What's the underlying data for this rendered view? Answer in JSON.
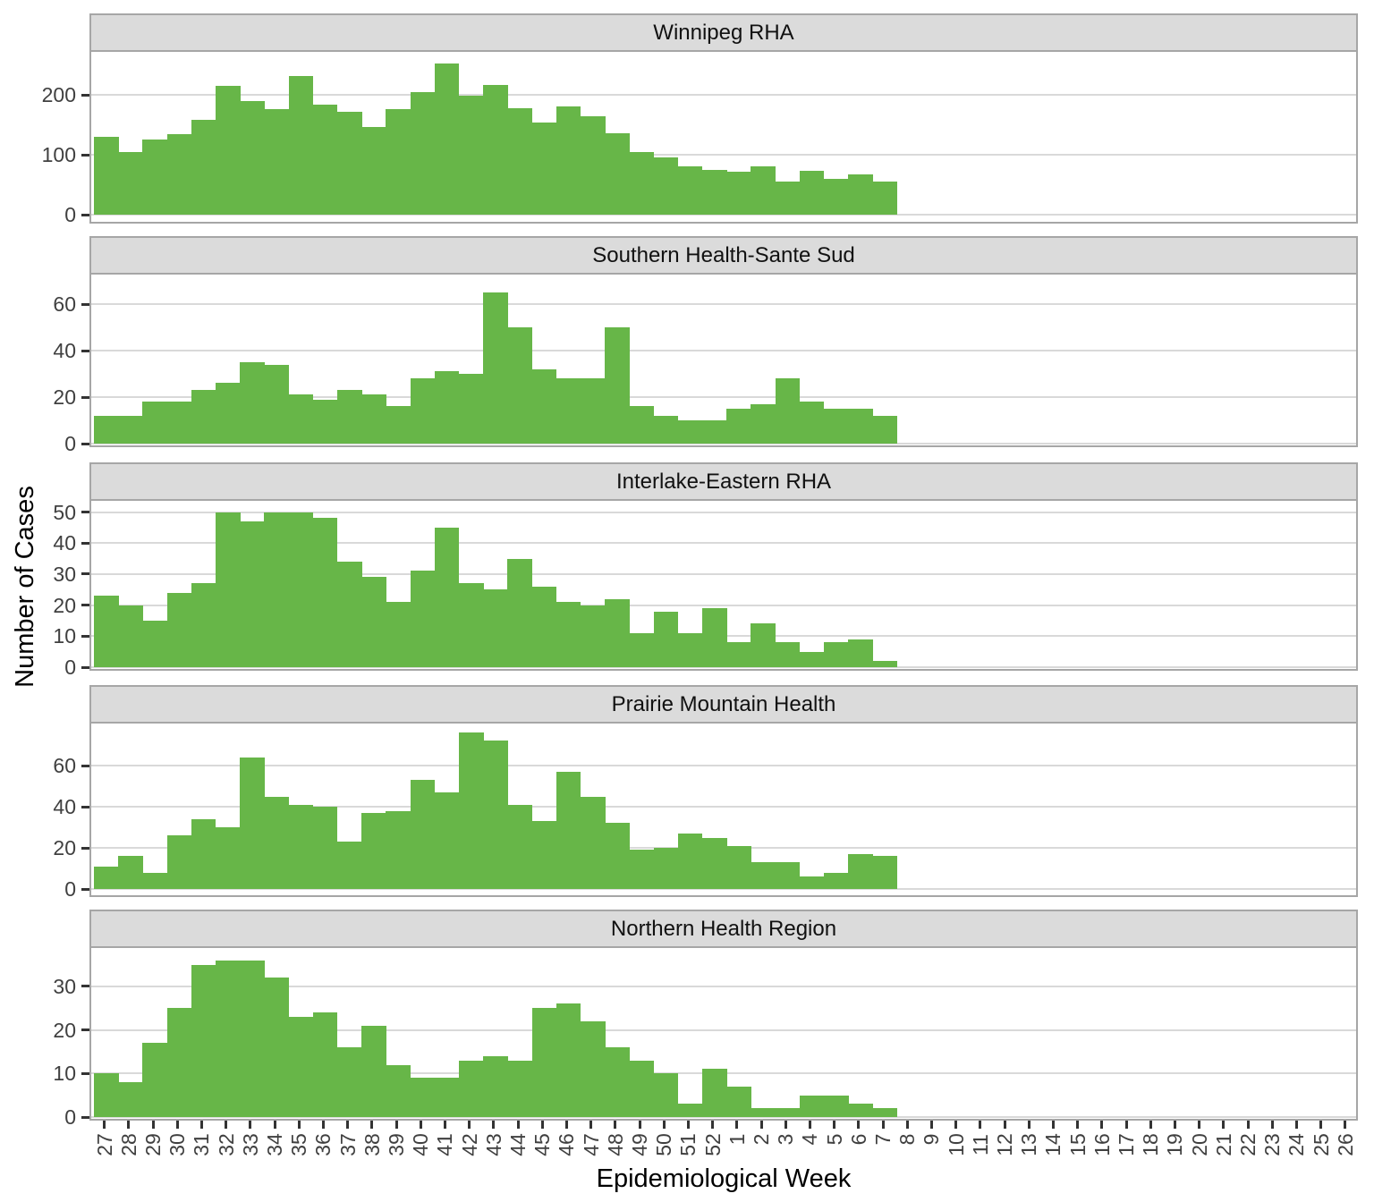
{
  "figure": {
    "y_axis_title": "Number of Cases",
    "x_axis_title": "Epidemiological Week"
  },
  "colors": {
    "bar": "#67b648",
    "strip_background": "#dbdbdb",
    "panel_border": "#a6a6a6",
    "gridline": "#d9d9d9",
    "tick_mark": "#333333",
    "axis_text": "#404040",
    "strip_text": "#111111"
  },
  "chart_data": {
    "type": "bar",
    "title": "",
    "xlabel": "Epidemiological Week",
    "ylabel": "Number of Cases",
    "grid": "major-horizontal",
    "legend": "none",
    "x_categories": [
      "27",
      "28",
      "29",
      "30",
      "31",
      "32",
      "33",
      "34",
      "35",
      "36",
      "37",
      "38",
      "39",
      "40",
      "41",
      "42",
      "43",
      "44",
      "45",
      "46",
      "47",
      "48",
      "49",
      "50",
      "51",
      "52",
      "1",
      "2",
      "3",
      "4",
      "5",
      "6",
      "7",
      "8",
      "9",
      "10",
      "11",
      "12",
      "13",
      "14",
      "15",
      "16",
      "17",
      "18",
      "19",
      "20",
      "21",
      "22",
      "23",
      "24",
      "25",
      "26"
    ],
    "weeks_with_data": [
      "27",
      "28",
      "29",
      "30",
      "31",
      "32",
      "33",
      "34",
      "35",
      "36",
      "37",
      "38",
      "39",
      "40",
      "41",
      "42",
      "43",
      "44",
      "45",
      "46",
      "47",
      "48",
      "49",
      "50",
      "51",
      "52",
      "1",
      "2",
      "3",
      "4",
      "5",
      "6",
      "7"
    ],
    "facets": [
      {
        "title": "Winnipeg RHA",
        "yticks": [
          0,
          100,
          200
        ],
        "values": [
          130,
          104,
          126,
          134,
          159,
          215,
          189,
          176,
          232,
          183,
          172,
          147,
          176,
          204,
          253,
          198,
          216,
          178,
          154,
          180,
          164,
          136,
          105,
          95,
          81,
          75,
          71,
          80,
          56,
          73,
          60,
          67,
          56
        ]
      },
      {
        "title": "Southern Health-Sante Sud",
        "yticks": [
          0,
          20,
          40,
          60
        ],
        "values": [
          12,
          12,
          18,
          18,
          23,
          26,
          35,
          34,
          21,
          19,
          23,
          21,
          16,
          28,
          31,
          30,
          65,
          50,
          32,
          28,
          28,
          50,
          16,
          12,
          10,
          10,
          15,
          17,
          28,
          18,
          15,
          15,
          12
        ]
      },
      {
        "title": "Interlake-Eastern RHA",
        "yticks": [
          0,
          10,
          20,
          30,
          40,
          50
        ],
        "values": [
          23,
          20,
          15,
          24,
          27,
          50,
          47,
          50,
          50,
          48,
          34,
          29,
          21,
          31,
          45,
          27,
          25,
          35,
          26,
          21,
          20,
          22,
          11,
          18,
          11,
          19,
          8,
          14,
          8,
          5,
          8,
          9,
          2
        ]
      },
      {
        "title": "Prairie Mountain Health",
        "yticks": [
          0,
          20,
          40,
          60
        ],
        "values": [
          11,
          16,
          8,
          26,
          34,
          30,
          64,
          45,
          41,
          40,
          23,
          37,
          38,
          53,
          47,
          76,
          72,
          41,
          33,
          57,
          45,
          32,
          19,
          20,
          27,
          25,
          21,
          13,
          13,
          6,
          8,
          17,
          16
        ]
      },
      {
        "title": "Northern Health Region",
        "yticks": [
          0,
          10,
          20,
          30
        ],
        "values": [
          10,
          8,
          17,
          25,
          35,
          36,
          36,
          32,
          23,
          24,
          16,
          21,
          12,
          9,
          9,
          13,
          14,
          13,
          25,
          26,
          22,
          16,
          13,
          10,
          3,
          11,
          7,
          2,
          2,
          5,
          5,
          3,
          2
        ]
      }
    ]
  }
}
